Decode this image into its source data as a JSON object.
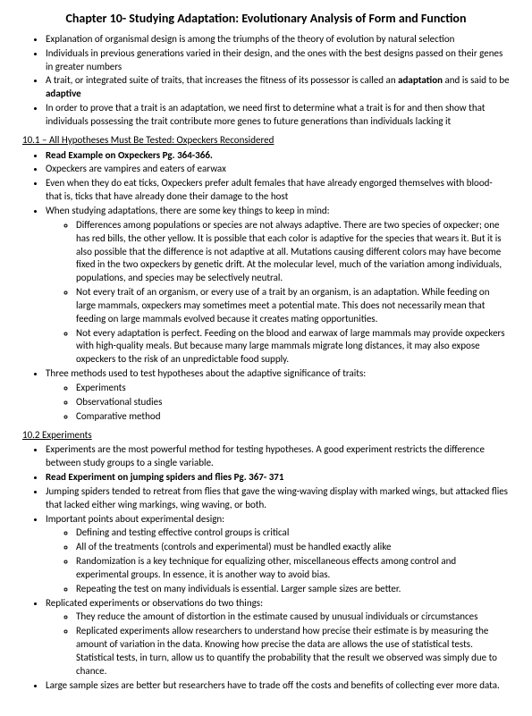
{
  "title": "Chapter 10- Studying Adaptation: Evolutionary Analysis of Form and Function",
  "intro": {
    "i1": "Explanation of organismal design is among the triumphs of the theory of evolution by natural selection",
    "i2": "Individuals in previous generations varied in their design, and the ones with the best designs passed on their genes in greater numbers",
    "i3a": "A trait, or integrated suite of traits, that increases the fitness of its possessor is called an ",
    "i3b": "adaptation",
    "i3c": " and is said to be ",
    "i3d": "adaptive",
    "i4": "In order to prove that a trait is an adaptation, we need first to determine what a trait is for and then show that individuals possessing the trait contribute more genes to future generations than individuals lacking it"
  },
  "sec101": {
    "head": "10.1 – All Hypotheses Must Be Tested: Oxpeckers Reconsidered",
    "b1": "Read Example on Oxpeckers Pg. 364-366.",
    "b2": "Oxpeckers are vampires and eaters of earwax",
    "b3": "Even when they do eat ticks, Oxpeckers prefer adult females that have already engorged themselves with blood- that is, ticks that have already done their damage to the host",
    "b4": "When studying adaptations, there are some key things to keep in mind:",
    "s1": "Differences among populations or species are not always adaptive. There are two species of oxpecker; one has red bills, the other yellow. It is possible that each color is adaptive for the species that wears it. But it is also possible that the difference is not adaptive at all. Mutations causing different colors may have become fixed in the two oxpeckers by genetic drift. At the molecular level, much of the variation among individuals, populations, and species may be selectively neutral.",
    "s2": "Not every trait of an organism, or every use of a trait by an organism, is an adaptation. While feeding on large mammals, oxpeckers may sometimes meet a potential mate. This does not necessarily mean that feeding on large mammals evolved because it creates mating opportunities.",
    "s3": "Not every adaptation is perfect. Feeding on the blood and earwax of large mammals may provide oxpeckers with high-quality meals. But because many large mammals migrate long distances, it may also expose oxpeckers to the risk of an unpredictable food supply.",
    "b5": "Three methods used to test hypotheses about the adaptive significance of traits:",
    "m1": "Experiments",
    "m2": "Observational studies",
    "m3": "Comparative method"
  },
  "sec102": {
    "head": "10.2 Experiments",
    "b1": "Experiments are the most powerful method for testing hypotheses. A good experiment restricts the difference between study groups to a single variable.",
    "b2": "Read Experiment on jumping spiders and flies Pg. 367- 371",
    "b3": "Jumping spiders tended to retreat from flies that gave the wing-waving display with marked wings, but attacked flies that lacked either wing markings, wing waving, or both.",
    "b4": "Important points about experimental design:",
    "s1": "Defining and testing effective control groups is critical",
    "s2": "All of the treatments (controls and experimental) must be handled exactly alike",
    "s3": "Randomization is a key technique for equalizing other, miscellaneous effects among control and experimental groups. In essence, it is another way to avoid bias.",
    "s4": "Repeating the test on many individuals is essential. Larger sample sizes are better.",
    "b5": "Replicated experiments or observations do two things:",
    "r1": "They reduce the amount of distortion in the estimate caused by unusual individuals or circumstances",
    "r2": "Replicated experiments allow researchers to understand how precise their estimate is by measuring the amount of variation in the data. Knowing how precise the data are allows the use of statistical tests. Statistical tests, in turn, allow us to quantify the probability that the result we observed was simply due to chance.",
    "b6": "Large sample sizes are better but researchers have to trade off the costs and benefits of collecting ever more data."
  }
}
